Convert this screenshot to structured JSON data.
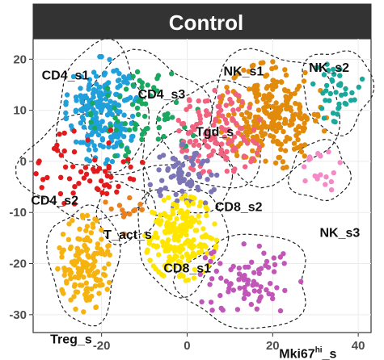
{
  "chart_data": {
    "type": "scatter",
    "title": "Control",
    "xlabel": "",
    "ylabel": "",
    "xlim": [
      -36,
      43
    ],
    "ylim": [
      -33.5,
      24
    ],
    "x_ticks": [
      -20,
      0,
      20,
      40
    ],
    "y_ticks": [
      -30,
      -20,
      -10,
      0,
      10,
      20
    ],
    "grid": true,
    "legend": "none",
    "clusters": [
      {
        "label": "CD4_s1",
        "label_pos": [
          -34,
          16
        ],
        "color": "#1fa0db",
        "center": [
          -20,
          10
        ],
        "spread": [
          4,
          5
        ],
        "count": 220
      },
      {
        "label": "CD4_s3",
        "label_pos": [
          -11.5,
          12.3
        ],
        "color": "#1aa760",
        "center": [
          -10,
          9
        ],
        "spread": [
          6,
          4.5
        ],
        "count": 70
      },
      {
        "label": "NK_s1",
        "label_pos": [
          8.5,
          16.8
        ],
        "color": "#e28a0b",
        "center": [
          20,
          9
        ],
        "spread": [
          6,
          5
        ],
        "count": 260
      },
      {
        "label": "NK_s2",
        "label_pos": [
          28.5,
          17.5
        ],
        "color": "#1ba89c",
        "center": [
          35,
          14
        ],
        "spread": [
          3,
          3
        ],
        "count": 40
      },
      {
        "label": "Tgd_s",
        "label_pos": [
          2,
          5
        ],
        "color": "#f0627f",
        "center": [
          7,
          5.5
        ],
        "spread": [
          5,
          4
        ],
        "count": 120
      },
      {
        "label": "CD4_s2",
        "label_pos": [
          -36.5,
          -8.5
        ],
        "color": "#e31a1c",
        "center": [
          -23,
          -1
        ],
        "spread": [
          6,
          4
        ],
        "count": 60
      },
      {
        "label": "NK_s3",
        "label_pos": [
          31,
          -14.8
        ],
        "color": "#f589c5",
        "center": [
          31,
          -2
        ],
        "spread": [
          2.5,
          2
        ],
        "count": 18
      },
      {
        "label": "CD8_s2",
        "label_pos": [
          6.5,
          -9.7
        ],
        "color": "#7b75b6",
        "center": [
          -0.5,
          -3
        ],
        "spread": [
          4,
          3
        ],
        "count": 70
      },
      {
        "label": "T_act_s",
        "label_pos": [
          -19.5,
          -15.2
        ],
        "color": "#ea7f1e",
        "center": [
          -14.5,
          -10
        ],
        "spread": [
          2.5,
          2
        ],
        "count": 15
      },
      {
        "label": "CD8_s1",
        "label_pos": [
          -5.5,
          -21.7
        ],
        "color": "#ffe600",
        "center": [
          -1.5,
          -15
        ],
        "spread": [
          4,
          4
        ],
        "count": 210
      },
      {
        "label": "Treg_s",
        "label_pos": [
          -32,
          -35.6
        ],
        "color": "#f6b20f",
        "center": [
          -24,
          -20
        ],
        "spread": [
          3,
          4.5
        ],
        "count": 150
      },
      {
        "label": "Mki67",
        "label_sup": "hi",
        "label_suffix": "_s",
        "label_pos": [
          21.5,
          -38.5
        ],
        "color": "#c056b7",
        "center": [
          14,
          -23.5
        ],
        "spread": [
          6,
          3.5
        ],
        "count": 80
      }
    ]
  }
}
